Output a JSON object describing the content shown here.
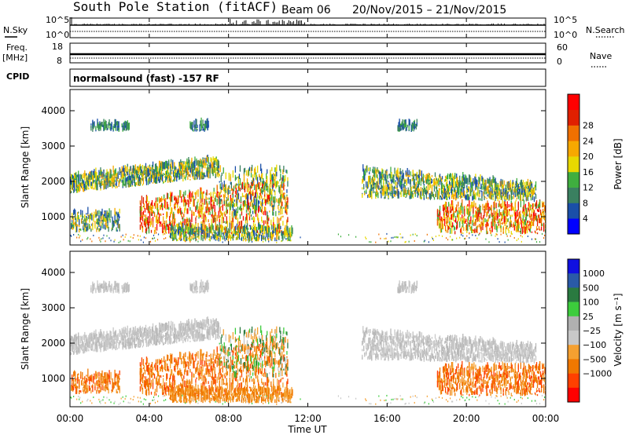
{
  "header": {
    "station": "South Pole Station (fitACF)",
    "beam": "Beam 06",
    "date_range": "20/Nov/2015 – 21/Nov/2015"
  },
  "side_labels": {
    "nsky": "N.Sky",
    "freq_line1": "Freq.",
    "freq_line2": "[MHz]",
    "cpid": "CPID",
    "nsearch": "N.Search",
    "nave": "Nave"
  },
  "mode_label": "normalsound (fast) -157 RF",
  "xlabel": "Time UT",
  "colors": {
    "power_scale": [
      "#0000ff",
      "#1a4fa8",
      "#3a8060",
      "#3fae3f",
      "#e8d800",
      "#f7a800",
      "#f07000",
      "#e02000",
      "#ff0000"
    ],
    "velocity_scale": [
      "#ff0000",
      "#ff4000",
      "#f07800",
      "#f5a030",
      "#c8c8c8",
      "#b0b0b0",
      "#3ccc3c",
      "#2a7a40",
      "#2a5aa8",
      "#1010e0"
    ]
  },
  "chart_data": [
    {
      "type": "line",
      "name": "noise-panel",
      "y_ticks_left": [
        "10^5",
        "10^0"
      ],
      "y_ticks_right": [
        "10^5",
        "10^0"
      ],
      "xlim": [
        0,
        24
      ]
    },
    {
      "type": "line",
      "name": "frequency-panel",
      "y_ticks_left": [
        "18",
        "8"
      ],
      "y_ticks_right": [
        "60",
        "0"
      ],
      "frequency_mhz": 11,
      "xlim": [
        0,
        24
      ]
    },
    {
      "type": "heatmap",
      "name": "power-panel",
      "ylabel": "Slant Range [km]",
      "ylim": [
        200,
        4600
      ],
      "y_ticks": [
        1000,
        2000,
        3000,
        4000
      ],
      "xlim": [
        0,
        24
      ],
      "colorbar_label": "Power [dB]",
      "colorbar_ticks": [
        "4",
        "8",
        "12",
        "16",
        "20",
        "24",
        "28"
      ],
      "colorbar_range": [
        0,
        30
      ]
    },
    {
      "type": "heatmap",
      "name": "velocity-panel",
      "ylabel": "Slant Range [km]",
      "ylim": [
        200,
        4600
      ],
      "y_ticks": [
        1000,
        2000,
        3000,
        4000
      ],
      "xlim": [
        0,
        24
      ],
      "x_ticks": [
        "00:00",
        "04:00",
        "08:00",
        "12:00",
        "16:00",
        "20:00",
        "00:00"
      ],
      "colorbar_label": "Velocity [m s⁻¹]",
      "colorbar_ticks": [
        "1000",
        "500",
        "100",
        "25",
        "−25",
        "−100",
        "−500",
        "−1000"
      ]
    }
  ]
}
